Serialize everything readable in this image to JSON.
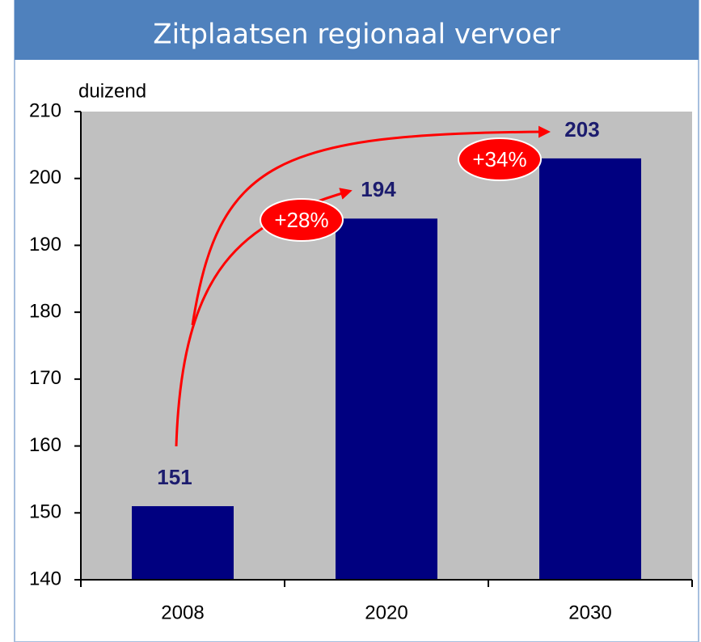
{
  "chart_data": {
    "type": "bar",
    "title": "Zitplaatsen regionaal vervoer",
    "y_label": "duizend",
    "categories": [
      "2008",
      "2020",
      "2030"
    ],
    "values": [
      151,
      194,
      203
    ],
    "color": "#000080",
    "ylim": [
      140,
      210
    ],
    "yticks": [
      140,
      150,
      160,
      170,
      180,
      190,
      200,
      210
    ],
    "grid": false,
    "annotations": [
      "+28%",
      "+34%"
    ]
  }
}
